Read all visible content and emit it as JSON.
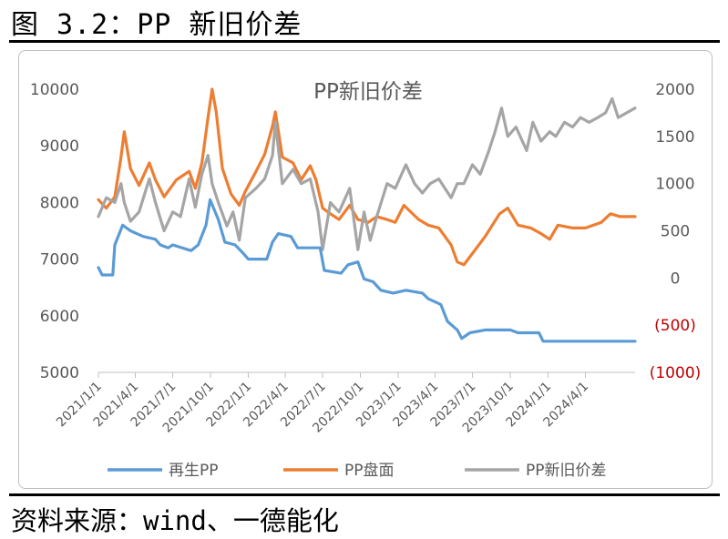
{
  "figure": {
    "title": "图 3.2：PP 新旧价差",
    "source": "资料来源：wind、一德能化"
  },
  "chart_data": {
    "type": "line",
    "title": "PP新旧价差",
    "y_left": {
      "ticks": [
        "10000",
        "9000",
        "8000",
        "7000",
        "6000",
        "5000"
      ],
      "ylim": [
        5000,
        10000
      ]
    },
    "y_right": {
      "ticks": [
        "2000",
        "1500",
        "1000",
        "500",
        "0",
        "(500)",
        "(1000)"
      ],
      "ylim": [
        -1000,
        2000
      ],
      "negative_color": "#c00000"
    },
    "x_ticks": [
      "2021/1/1",
      "2021/4/1",
      "2021/7/1",
      "2021/10/1",
      "2022/1/1",
      "2022/4/1",
      "2022/7/1",
      "2022/10/1",
      "2023/1/1",
      "2023/4/1",
      "2023/7/1",
      "2023/10/1",
      "2024/1/1",
      "2024/4/1"
    ],
    "grid": false,
    "legend_position": "bottom",
    "series": [
      {
        "name": "再生PP",
        "axis": "left",
        "color": "#5b9bd5",
        "points": [
          [
            "2021/1/1",
            6850
          ],
          [
            "2021/1/10",
            6720
          ],
          [
            "2021/2/5",
            6720
          ],
          [
            "2021/2/10",
            7250
          ],
          [
            "2021/3/1",
            7600
          ],
          [
            "2021/3/20",
            7500
          ],
          [
            "2021/4/20",
            7400
          ],
          [
            "2021/5/20",
            7350
          ],
          [
            "2021/6/1",
            7250
          ],
          [
            "2021/6/20",
            7200
          ],
          [
            "2021/7/1",
            7250
          ],
          [
            "2021/8/15",
            7150
          ],
          [
            "2021/9/1",
            7250
          ],
          [
            "2021/9/20",
            7600
          ],
          [
            "2021/9/30",
            8050
          ],
          [
            "2021/10/20",
            7700
          ],
          [
            "2021/11/5",
            7300
          ],
          [
            "2021/11/30",
            7250
          ],
          [
            "2021/12/20",
            7100
          ],
          [
            "2022/1/1",
            7000
          ],
          [
            "2022/2/15",
            7000
          ],
          [
            "2022/3/1",
            7300
          ],
          [
            "2022/3/15",
            7450
          ],
          [
            "2022/4/15",
            7400
          ],
          [
            "2022/5/1",
            7200
          ],
          [
            "2022/6/25",
            7200
          ],
          [
            "2022/7/5",
            6800
          ],
          [
            "2022/8/15",
            6750
          ],
          [
            "2022/9/1",
            6900
          ],
          [
            "2022/9/25",
            6950
          ],
          [
            "2022/10/10",
            6650
          ],
          [
            "2022/11/1",
            6600
          ],
          [
            "2022/11/20",
            6450
          ],
          [
            "2022/12/20",
            6400
          ],
          [
            "2023/1/20",
            6450
          ],
          [
            "2023/3/1",
            6400
          ],
          [
            "2023/3/15",
            6300
          ],
          [
            "2023/4/15",
            6200
          ],
          [
            "2023/5/1",
            5900
          ],
          [
            "2023/5/25",
            5750
          ],
          [
            "2023/6/5",
            5600
          ],
          [
            "2023/6/25",
            5700
          ],
          [
            "2023/8/1",
            5750
          ],
          [
            "2023/10/1",
            5750
          ],
          [
            "2023/10/20",
            5700
          ],
          [
            "2023/12/10",
            5700
          ],
          [
            "2023/12/20",
            5550
          ],
          [
            "2024/7/31",
            5550
          ]
        ]
      },
      {
        "name": "PP盘面",
        "axis": "left",
        "color": "#ed7d31",
        "points": [
          [
            "2021/1/1",
            8050
          ],
          [
            "2021/1/20",
            7900
          ],
          [
            "2021/2/10",
            8100
          ],
          [
            "2021/2/25",
            8800
          ],
          [
            "2021/3/5",
            9250
          ],
          [
            "2021/3/20",
            8600
          ],
          [
            "2021/4/10",
            8300
          ],
          [
            "2021/5/5",
            8700
          ],
          [
            "2021/5/20",
            8400
          ],
          [
            "2021/6/10",
            8100
          ],
          [
            "2021/7/10",
            8400
          ],
          [
            "2021/8/10",
            8550
          ],
          [
            "2021/8/25",
            8250
          ],
          [
            "2021/9/10",
            8700
          ],
          [
            "2021/9/25",
            9500
          ],
          [
            "2021/10/5",
            10000
          ],
          [
            "2021/10/15",
            9600
          ],
          [
            "2021/10/30",
            8600
          ],
          [
            "2021/11/20",
            8150
          ],
          [
            "2021/12/10",
            7950
          ],
          [
            "2021/12/25",
            8200
          ],
          [
            "2022/1/20",
            8550
          ],
          [
            "2022/2/10",
            8850
          ],
          [
            "2022/3/1",
            9350
          ],
          [
            "2022/3/8",
            9600
          ],
          [
            "2022/3/25",
            8800
          ],
          [
            "2022/4/20",
            8700
          ],
          [
            "2022/5/10",
            8400
          ],
          [
            "2022/6/1",
            8650
          ],
          [
            "2022/6/15",
            8400
          ],
          [
            "2022/7/1",
            7900
          ],
          [
            "2022/7/20",
            7800
          ],
          [
            "2022/8/10",
            7700
          ],
          [
            "2022/9/5",
            7950
          ],
          [
            "2022/9/25",
            7700
          ],
          [
            "2022/10/20",
            7650
          ],
          [
            "2022/11/10",
            7750
          ],
          [
            "2022/12/5",
            7700
          ],
          [
            "2022/12/25",
            7650
          ],
          [
            "2023/1/15",
            7950
          ],
          [
            "2023/2/20",
            7700
          ],
          [
            "2023/3/15",
            7600
          ],
          [
            "2023/4/10",
            7550
          ],
          [
            "2023/5/10",
            7250
          ],
          [
            "2023/5/25",
            6950
          ],
          [
            "2023/6/10",
            6900
          ],
          [
            "2023/7/1",
            7100
          ],
          [
            "2023/8/1",
            7400
          ],
          [
            "2023/9/5",
            7800
          ],
          [
            "2023/9/25",
            7900
          ],
          [
            "2023/10/20",
            7600
          ],
          [
            "2023/11/20",
            7550
          ],
          [
            "2023/12/15",
            7450
          ],
          [
            "2024/1/5",
            7350
          ],
          [
            "2024/1/25",
            7600
          ],
          [
            "2024/3/1",
            7550
          ],
          [
            "2024/4/1",
            7550
          ],
          [
            "2024/5/10",
            7650
          ],
          [
            "2024/6/1",
            7800
          ],
          [
            "2024/6/25",
            7750
          ],
          [
            "2024/7/31",
            7750
          ]
        ]
      },
      {
        "name": "PP新旧价差",
        "axis": "right",
        "color": "#a5a5a5",
        "points": [
          [
            "2021/1/1",
            650
          ],
          [
            "2021/1/20",
            850
          ],
          [
            "2021/2/10",
            800
          ],
          [
            "2021/2/25",
            1000
          ],
          [
            "2021/3/5",
            800
          ],
          [
            "2021/3/20",
            600
          ],
          [
            "2021/4/10",
            700
          ],
          [
            "2021/5/5",
            1050
          ],
          [
            "2021/5/20",
            800
          ],
          [
            "2021/6/10",
            500
          ],
          [
            "2021/7/1",
            700
          ],
          [
            "2021/7/20",
            650
          ],
          [
            "2021/8/10",
            1050
          ],
          [
            "2021/8/25",
            750
          ],
          [
            "2021/9/10",
            1100
          ],
          [
            "2021/9/25",
            1300
          ],
          [
            "2021/10/5",
            1000
          ],
          [
            "2021/10/20",
            800
          ],
          [
            "2021/11/10",
            550
          ],
          [
            "2021/11/25",
            700
          ],
          [
            "2021/12/10",
            400
          ],
          [
            "2021/12/25",
            850
          ],
          [
            "2022/1/20",
            950
          ],
          [
            "2022/2/10",
            1050
          ],
          [
            "2022/3/1",
            1300
          ],
          [
            "2022/3/8",
            1650
          ],
          [
            "2022/3/25",
            1000
          ],
          [
            "2022/4/20",
            1150
          ],
          [
            "2022/5/10",
            1000
          ],
          [
            "2022/6/1",
            1050
          ],
          [
            "2022/6/20",
            700
          ],
          [
            "2022/7/1",
            300
          ],
          [
            "2022/7/20",
            800
          ],
          [
            "2022/8/10",
            700
          ],
          [
            "2022/9/5",
            950
          ],
          [
            "2022/9/25",
            300
          ],
          [
            "2022/10/10",
            700
          ],
          [
            "2022/10/25",
            400
          ],
          [
            "2022/11/10",
            650
          ],
          [
            "2022/12/5",
            1000
          ],
          [
            "2022/12/25",
            950
          ],
          [
            "2023/1/20",
            1200
          ],
          [
            "2023/2/10",
            1000
          ],
          [
            "2023/3/1",
            900
          ],
          [
            "2023/3/20",
            1000
          ],
          [
            "2023/4/10",
            1050
          ],
          [
            "2023/5/10",
            850
          ],
          [
            "2023/5/25",
            1000
          ],
          [
            "2023/6/10",
            1000
          ],
          [
            "2023/7/1",
            1200
          ],
          [
            "2023/7/20",
            1100
          ],
          [
            "2023/8/10",
            1350
          ],
          [
            "2023/8/25",
            1550
          ],
          [
            "2023/9/10",
            1800
          ],
          [
            "2023/9/25",
            1500
          ],
          [
            "2023/10/15",
            1600
          ],
          [
            "2023/11/10",
            1350
          ],
          [
            "2023/11/25",
            1650
          ],
          [
            "2023/12/15",
            1450
          ],
          [
            "2024/1/5",
            1550
          ],
          [
            "2024/1/20",
            1500
          ],
          [
            "2024/2/10",
            1650
          ],
          [
            "2024/3/1",
            1600
          ],
          [
            "2024/3/20",
            1700
          ],
          [
            "2024/4/10",
            1650
          ],
          [
            "2024/5/1",
            1700
          ],
          [
            "2024/5/20",
            1750
          ],
          [
            "2024/6/5",
            1900
          ],
          [
            "2024/6/20",
            1700
          ],
          [
            "2024/7/31",
            1800
          ]
        ]
      }
    ]
  }
}
